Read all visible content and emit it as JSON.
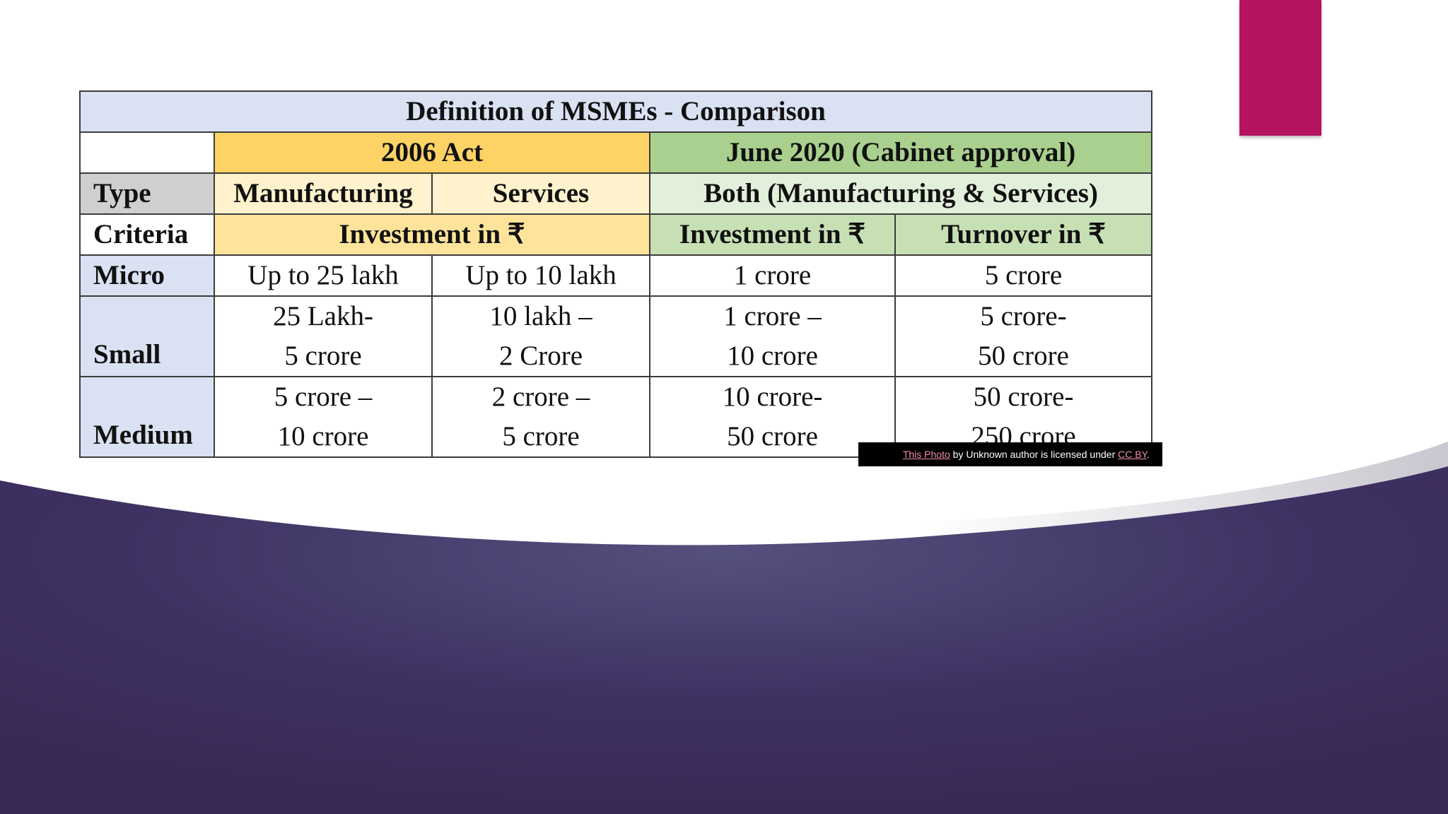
{
  "slide": {
    "colors": {
      "accent": "#b5135f",
      "background_dark": "#3a2c5c",
      "background_light": "#ffffff"
    }
  },
  "table": {
    "title": "Definition of MSMEs - Comparison",
    "act_2006": "2006 Act",
    "act_2020": "June 2020 (Cabinet approval)",
    "type_label": "Type",
    "manufacturing": "Manufacturing",
    "services": "Services",
    "both": "Both (Manufacturing & Services)",
    "criteria_label": "Criteria",
    "investment_2006": "Investment in ₹",
    "investment_2020": "Investment in ₹",
    "turnover_2020": "Turnover in ₹",
    "rows": [
      {
        "type": "Micro",
        "mfg": [
          "Up to 25 lakh"
        ],
        "svc": [
          "Up to 10 lakh"
        ],
        "inv": [
          "1 crore"
        ],
        "turn": [
          "5 crore"
        ]
      },
      {
        "type": "Small",
        "mfg": [
          "25 Lakh-",
          "5 crore"
        ],
        "svc": [
          "10 lakh –",
          "2 Crore"
        ],
        "inv": [
          "1 crore –",
          "10 crore"
        ],
        "turn": [
          "5 crore-",
          "50 crore"
        ]
      },
      {
        "type": "Medium",
        "mfg": [
          "5 crore –",
          "10 crore"
        ],
        "svc": [
          "2 crore –",
          "5 crore"
        ],
        "inv": [
          "10 crore-",
          "50 crore"
        ],
        "turn": [
          "50 crore-",
          "250 crore"
        ]
      }
    ]
  },
  "credit": {
    "link_text": "This Photo",
    "middle_text": " by Unknown author is licensed under ",
    "license_text": "CC BY",
    "end_text": "."
  }
}
